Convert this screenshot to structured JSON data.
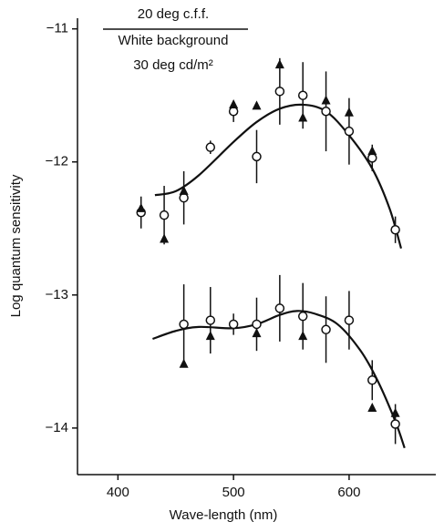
{
  "chart_data": {
    "type": "scatter",
    "annotations": [
      "20 deg c.f.f.",
      "White background",
      "30 deg cd/m²"
    ],
    "xlabel": "Wave-length (nm)",
    "ylabel": "Log quantum sensitivity",
    "xlim": [
      365,
      675
    ],
    "ylim": [
      -14.35,
      -10.92
    ],
    "xticks": [
      400,
      500,
      600
    ],
    "yticks": [
      {
        "value": -11,
        "label": "−11"
      },
      {
        "value": -12,
        "label": "−12"
      },
      {
        "value": -13,
        "label": "−13"
      },
      {
        "value": -14,
        "label": "−14"
      }
    ],
    "color": "#111111",
    "series": [
      {
        "marker": "circle",
        "x": [
          420,
          440,
          457,
          480,
          500,
          520,
          540,
          560,
          580,
          600,
          620,
          640
        ],
        "values": [
          -12.38,
          -12.4,
          -12.27,
          -11.89,
          -11.62,
          -11.96,
          -11.47,
          -11.5,
          -11.62,
          -11.77,
          -11.97,
          -12.51
        ],
        "errors": [
          0.12,
          0.22,
          0.2,
          0.05,
          0.08,
          0.2,
          0.25,
          0.25,
          0.3,
          0.25,
          0.1,
          0.1
        ]
      },
      {
        "marker": "triangle",
        "x": [
          420,
          440,
          457,
          500,
          520,
          540,
          560,
          580,
          600,
          620
        ],
        "values": [
          -12.35,
          -12.58,
          -12.22,
          -11.57,
          -11.58,
          -11.27,
          -11.67,
          -11.54,
          -11.63,
          -11.92
        ]
      },
      {
        "marker": "circle",
        "x": [
          457,
          480,
          500,
          520,
          540,
          560,
          580,
          600,
          620,
          640
        ],
        "values": [
          -13.22,
          -13.19,
          -13.22,
          -13.22,
          -13.1,
          -13.16,
          -13.26,
          -13.19,
          -13.64,
          -13.97
        ],
        "errors": [
          0.3,
          0.25,
          0.08,
          0.2,
          0.25,
          0.25,
          0.25,
          0.22,
          0.15,
          0.15
        ]
      },
      {
        "marker": "triangle",
        "x": [
          457,
          480,
          520,
          560,
          620,
          640
        ],
        "values": [
          -13.52,
          -13.31,
          -13.29,
          -13.31,
          -13.85,
          -13.89
        ]
      },
      {
        "marker": "line",
        "x": [
          432,
          450,
          470,
          500,
          520,
          540,
          560,
          580,
          600,
          620,
          635,
          645
        ],
        "values": [
          -12.25,
          -12.22,
          -12.1,
          -11.85,
          -11.7,
          -11.6,
          -11.57,
          -11.62,
          -11.8,
          -12.05,
          -12.35,
          -12.65
        ]
      },
      {
        "marker": "line",
        "x": [
          430,
          450,
          470,
          500,
          520,
          540,
          555,
          570,
          590,
          610,
          625,
          640,
          648
        ],
        "values": [
          -13.33,
          -13.27,
          -13.24,
          -13.25,
          -13.22,
          -13.15,
          -13.12,
          -13.14,
          -13.22,
          -13.42,
          -13.65,
          -13.95,
          -14.15
        ]
      }
    ]
  }
}
